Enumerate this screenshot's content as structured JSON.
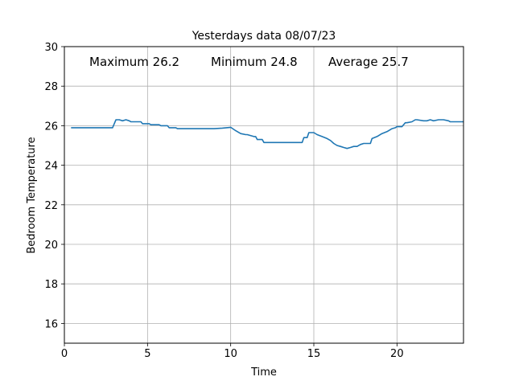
{
  "chart_data": {
    "type": "line",
    "title": "Yesterdays data  08/07/23",
    "xlabel": "Time",
    "ylabel": "Bedroom Temperature",
    "xlim": [
      0,
      24
    ],
    "ylim": [
      15,
      30
    ],
    "xticks": [
      0,
      5,
      10,
      15,
      20
    ],
    "yticks": [
      16,
      18,
      20,
      22,
      24,
      26,
      28,
      30
    ],
    "grid": true,
    "line_color": "#1f77b4",
    "annotations": {
      "max": "Maximum 26.2",
      "min": "Minimum 24.8",
      "avg": "Average 25.7"
    },
    "series": [
      {
        "x": [
          0.4,
          2.9,
          3.0,
          3.1,
          3.3,
          3.5,
          3.7,
          3.9,
          4.0,
          4.6,
          4.7,
          5.1,
          5.2,
          5.7,
          5.8,
          6.2,
          6.3,
          6.7,
          6.8,
          9.0,
          9.5,
          10.0,
          10.3,
          10.6,
          10.9,
          11.0,
          11.4,
          11.5,
          11.6,
          11.9,
          12.0,
          14.3,
          14.4,
          14.6,
          14.7,
          15.0,
          15.2,
          15.5,
          15.8,
          16.0,
          16.2,
          16.4,
          16.6,
          16.8,
          17.0,
          17.2,
          17.4,
          17.6,
          17.8,
          18.0,
          18.4,
          18.5,
          18.8,
          19.1,
          19.4,
          19.6,
          19.7,
          19.9,
          20.0,
          20.3,
          20.5,
          20.6,
          20.9,
          21.1,
          21.2,
          21.6,
          21.8,
          22.0,
          22.2,
          22.5,
          22.8,
          23.1,
          23.2,
          24.0
        ],
        "y": [
          25.9,
          25.9,
          26.1,
          26.3,
          26.3,
          26.25,
          26.3,
          26.25,
          26.2,
          26.2,
          26.1,
          26.1,
          26.05,
          26.05,
          26.0,
          26.0,
          25.9,
          25.9,
          25.85,
          25.85,
          25.88,
          25.92,
          25.75,
          25.6,
          25.55,
          25.55,
          25.45,
          25.45,
          25.3,
          25.3,
          25.15,
          25.15,
          25.4,
          25.4,
          25.65,
          25.65,
          25.55,
          25.45,
          25.35,
          25.25,
          25.1,
          25.0,
          24.95,
          24.9,
          24.85,
          24.9,
          24.95,
          24.95,
          25.05,
          25.1,
          25.1,
          25.35,
          25.45,
          25.6,
          25.7,
          25.8,
          25.85,
          25.9,
          25.95,
          25.95,
          26.15,
          26.15,
          26.2,
          26.3,
          26.3,
          26.25,
          26.25,
          26.3,
          26.25,
          26.3,
          26.3,
          26.25,
          26.2,
          26.2
        ]
      }
    ]
  }
}
